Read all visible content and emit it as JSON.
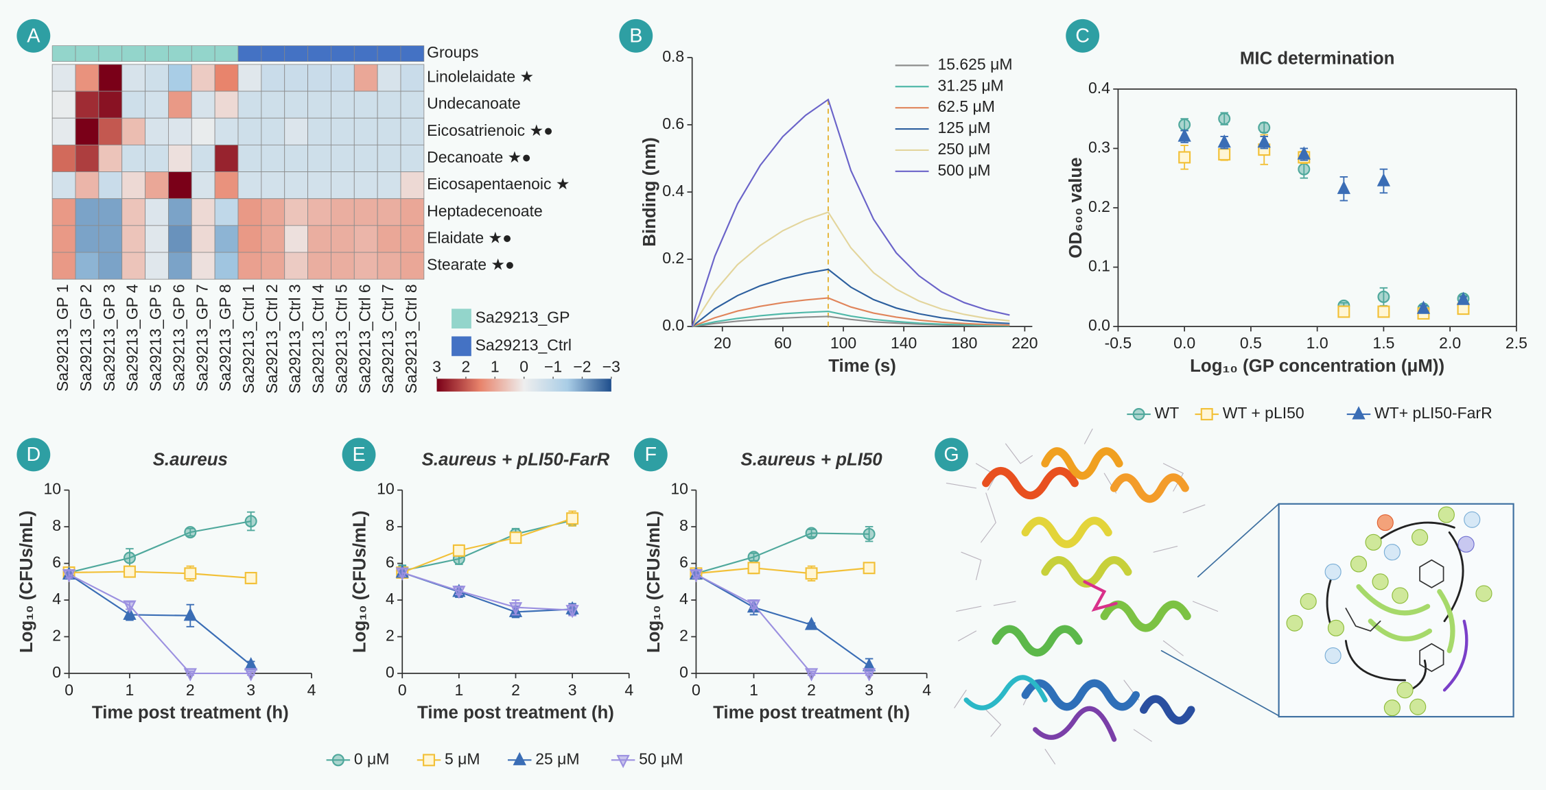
{
  "panel_labels": [
    "A",
    "B",
    "C",
    "D",
    "E",
    "F",
    "G"
  ],
  "chart_data": [
    {
      "type": "heatmap",
      "rows": [
        "Linolelaidate ★",
        "Undecanoate",
        "Eicosatrienoic ★●",
        "Decanoate ★●",
        "Eicosapentaenoic ★",
        "Heptadecenoate",
        "Elaidate ★●",
        "Stearate  ★●"
      ],
      "columns": [
        "Sa29213_GP 1",
        "Sa29213_GP 2",
        "Sa29213_GP 3",
        "Sa29213_GP 4",
        "Sa29213_GP 5",
        "Sa29213_GP 6",
        "Sa29213_GP 7",
        "Sa29213_GP 8",
        "Sa29213_Ctrl 1",
        "Sa29213_Ctrl 2",
        "Sa29213_Ctrl 3",
        "Sa29213_Ctrl 4",
        "Sa29213_Ctrl 5",
        "Sa29213_Ctrl 6",
        "Sa29213_Ctrl 7",
        "Sa29213_Ctrl 8"
      ],
      "values": [
        [
          -0.3,
          1.3,
          3,
          -0.5,
          -0.7,
          -1.5,
          0.5,
          1.5,
          -0.3,
          -0.8,
          -0.8,
          -0.8,
          -0.8,
          1.0,
          -0.5,
          -0.8
        ],
        [
          -0.1,
          2.5,
          2.8,
          -0.7,
          -0.6,
          1.2,
          -0.5,
          0.3,
          -0.7,
          -0.7,
          -0.7,
          -0.7,
          -0.7,
          -0.7,
          -0.7,
          -0.7
        ],
        [
          -0.2,
          3.2,
          2,
          0.7,
          -0.5,
          -0.4,
          -0.1,
          -0.6,
          -0.7,
          -0.7,
          -0.4,
          -0.7,
          -0.7,
          -0.7,
          -0.7,
          -0.7
        ],
        [
          1.8,
          2.3,
          0.6,
          -0.7,
          -0.7,
          0.2,
          -0.7,
          2.6,
          -0.7,
          -0.7,
          -0.7,
          -0.7,
          -0.7,
          -0.7,
          -0.7,
          -0.7
        ],
        [
          -0.6,
          0.8,
          -0.8,
          0.3,
          1.0,
          3.3,
          -0.5,
          1.3,
          -0.6,
          -0.6,
          -0.6,
          -0.6,
          -0.6,
          -0.6,
          -0.6,
          0.3
        ],
        [
          1.2,
          -2,
          -2,
          0.6,
          -0.4,
          -2,
          0.3,
          -1,
          1.2,
          1.0,
          0.6,
          0.8,
          0.9,
          0.9,
          0.9,
          1.0
        ],
        [
          1.2,
          -2,
          -2,
          0.6,
          -0.3,
          -2.2,
          0.3,
          -1.8,
          1.2,
          1.0,
          0.2,
          0.9,
          0.9,
          0.8,
          1.0,
          1.0
        ],
        [
          1.2,
          -1.8,
          -2,
          0.6,
          -0.3,
          -2,
          0.2,
          -1.6,
          1.1,
          1.0,
          0.5,
          0.9,
          0.9,
          0.8,
          0.9,
          1.0
        ]
      ],
      "group_label": "Groups",
      "column_groups": [
        "Sa29213_GP",
        "Sa29213_GP",
        "Sa29213_GP",
        "Sa29213_GP",
        "Sa29213_GP",
        "Sa29213_GP",
        "Sa29213_GP",
        "Sa29213_GP",
        "Sa29213_Ctrl",
        "Sa29213_Ctrl",
        "Sa29213_Ctrl",
        "Sa29213_Ctrl",
        "Sa29213_Ctrl",
        "Sa29213_Ctrl",
        "Sa29213_Ctrl",
        "Sa29213_Ctrl"
      ],
      "groups": [
        {
          "name": "Sa29213_GP",
          "color": "#93d5cb"
        },
        {
          "name": "Sa29213_Ctrl",
          "color": "#4472c4"
        }
      ],
      "clim": [
        -3,
        3
      ],
      "colorbar_ticks": [
        3,
        2,
        1,
        0,
        {
          "value": -1,
          "label": "−1"
        },
        {
          "value": -2,
          "label": "−2"
        },
        {
          "value": -3,
          "label": "−3"
        }
      ],
      "colormap": [
        "#7a0018",
        "#e8846c",
        "#eeeeee",
        "#a9cde6",
        "#1f4e8c"
      ]
    },
    {
      "type": "line",
      "xlabel": "Time (s)",
      "ylabel": "Binding (nm)",
      "x": [
        0,
        15,
        30,
        45,
        60,
        75,
        90,
        105,
        120,
        135,
        150,
        165,
        180,
        195,
        210
      ],
      "series": [
        {
          "name": "15.625 μM",
          "color": "#8c8c8c",
          "values": [
            0,
            0.009,
            0.016,
            0.021,
            0.025,
            0.028,
            0.03,
            0.021,
            0.014,
            0.01,
            0.007,
            0.005,
            0.003,
            0.002,
            0.002
          ]
        },
        {
          "name": "31.25 μM",
          "color": "#4fb8a8",
          "values": [
            0,
            0.014,
            0.024,
            0.032,
            0.038,
            0.042,
            0.045,
            0.031,
            0.021,
            0.015,
            0.01,
            0.007,
            0.005,
            0.003,
            0.002
          ]
        },
        {
          "name": "62.5 μM",
          "color": "#e0845a",
          "values": [
            0,
            0.026,
            0.046,
            0.06,
            0.071,
            0.079,
            0.085,
            0.058,
            0.04,
            0.028,
            0.019,
            0.013,
            0.009,
            0.006,
            0.004
          ]
        },
        {
          "name": "125 μM",
          "color": "#2c5f9e",
          "values": [
            0,
            0.053,
            0.092,
            0.121,
            0.142,
            0.158,
            0.17,
            0.117,
            0.08,
            0.055,
            0.038,
            0.026,
            0.018,
            0.012,
            0.009
          ]
        },
        {
          "name": "250 μM",
          "color": "#e3d59c",
          "values": [
            0,
            0.105,
            0.184,
            0.241,
            0.285,
            0.317,
            0.34,
            0.234,
            0.16,
            0.111,
            0.076,
            0.052,
            0.036,
            0.024,
            0.017
          ]
        },
        {
          "name": "500 μM",
          "color": "#6a63c9",
          "values": [
            0,
            0.209,
            0.365,
            0.479,
            0.565,
            0.628,
            0.675,
            0.464,
            0.319,
            0.219,
            0.151,
            0.103,
            0.071,
            0.049,
            0.034
          ]
        }
      ],
      "xlim": [
        0,
        225
      ],
      "ylim": [
        0,
        0.8
      ],
      "xticks": [
        20,
        60,
        100,
        140,
        180,
        220
      ],
      "yticks": [
        {
          "value": 0,
          "label": "0.0"
        },
        0.2,
        0.4,
        0.6,
        0.8
      ],
      "vline": 90,
      "vline_color": "#e6b73c",
      "legend": "upper right"
    },
    {
      "type": "scatter",
      "title": "MIC determination",
      "xlabel": "Log₁₀ (GP concentration (μM))",
      "ylabel": "OD₆₀₀ value",
      "x": [
        0,
        0.3,
        0.6,
        0.9,
        1.2,
        1.5,
        1.8,
        2.1
      ],
      "series": [
        {
          "name": "WT",
          "color": "#4fa89c",
          "marker": "circle",
          "values": [
            0.34,
            0.35,
            0.335,
            0.265,
            0.035,
            0.05,
            0.03,
            0.047
          ],
          "errors": [
            0.01,
            0.01,
            0.008,
            0.015,
            0.005,
            0.015,
            0.005,
            0.005
          ]
        },
        {
          "name": "WT + pLI50",
          "color": "#f2c037",
          "marker": "square",
          "values": [
            0.285,
            0.29,
            0.298,
            0.285,
            0.025,
            0.025,
            0.022,
            0.03
          ],
          "errors": [
            0.02,
            0.01,
            0.025,
            0.01,
            0.005,
            0.005,
            0.005,
            0.005
          ]
        },
        {
          "name": "WT+ pLI50-FarR",
          "color": "#3a6db5",
          "marker": "triangle",
          "values": [
            0.32,
            0.31,
            0.31,
            0.29,
            0.232,
            0.245,
            0.03,
            0.045
          ],
          "errors": [
            0.01,
            0.01,
            0.01,
            0.01,
            0.02,
            0.02,
            0.005,
            0.005
          ]
        }
      ],
      "xlim": [
        -0.5,
        2.5
      ],
      "ylim": [
        0,
        0.4
      ],
      "xticks": [
        {
          "value": -0.5,
          "label": "-0.5"
        },
        {
          "value": 0,
          "label": "0.0"
        },
        0.5,
        {
          "value": 1,
          "label": "1.0"
        },
        1.5,
        {
          "value": 2,
          "label": "2.0"
        },
        2.5
      ],
      "yticks": [
        {
          "value": 0,
          "label": "0.0"
        },
        0.1,
        0.2,
        0.3,
        0.4
      ]
    },
    {
      "type": "line",
      "title": "S.aureus",
      "xlabel": "Time post treatment (h)",
      "ylabel": "Log₁₀ (CFUs/mL)",
      "x": [
        0,
        1,
        2,
        3
      ],
      "series": [
        {
          "name": "0 μM",
          "color": "#4fa89c",
          "marker": "circle",
          "values": [
            5.5,
            6.3,
            7.7,
            8.3
          ],
          "errors": [
            0.3,
            0.5,
            0.2,
            0.5
          ]
        },
        {
          "name": "5 μM",
          "color": "#f2c037",
          "marker": "square",
          "values": [
            5.5,
            5.55,
            5.45,
            5.2
          ],
          "errors": [
            0.2,
            0.3,
            0.4,
            0.3
          ]
        },
        {
          "name": "25 μM",
          "color": "#3a6db5",
          "marker": "triangle",
          "values": [
            5.4,
            3.2,
            3.15,
            0.45
          ],
          "errors": [
            0.2,
            0.3,
            0.6,
            0.2
          ]
        },
        {
          "name": "50 μM",
          "color": "#9b90e0",
          "marker": "triangle-down",
          "values": [
            5.4,
            3.7,
            0,
            0
          ],
          "errors": [
            0.2,
            0.2,
            0.1,
            0.1
          ]
        }
      ],
      "xlim": [
        0,
        4
      ],
      "ylim": [
        0,
        10
      ],
      "xticks": [
        0,
        1,
        2,
        3,
        4
      ],
      "yticks": [
        0,
        2,
        4,
        6,
        8,
        10
      ]
    },
    {
      "type": "line",
      "title": "S.aureus + pLI50-FarR",
      "xlabel": "Time post treatment (h)",
      "ylabel": "Log₁₀ (CFUs/mL)",
      "x": [
        0,
        1,
        2,
        3
      ],
      "series": [
        {
          "name": "0 μM",
          "color": "#4fa89c",
          "marker": "circle",
          "values": [
            5.6,
            6.25,
            7.6,
            8.35
          ],
          "errors": [
            0.3,
            0.3,
            0.3,
            0.3
          ]
        },
        {
          "name": "5 μM",
          "color": "#f2c037",
          "marker": "square",
          "values": [
            5.5,
            6.7,
            7.4,
            8.45
          ],
          "errors": [
            0.2,
            0.3,
            0.2,
            0.4
          ]
        },
        {
          "name": "25 μM",
          "color": "#3a6db5",
          "marker": "triangle",
          "values": [
            5.5,
            4.45,
            3.35,
            3.5
          ],
          "errors": [
            0.2,
            0.3,
            0.3,
            0.3
          ]
        },
        {
          "name": "50 μM",
          "color": "#9b90e0",
          "marker": "triangle-down",
          "values": [
            5.5,
            4.5,
            3.6,
            3.45
          ],
          "errors": [
            0.2,
            0.2,
            0.4,
            0.3
          ]
        }
      ],
      "xlim": [
        0,
        4
      ],
      "ylim": [
        0,
        10
      ],
      "xticks": [
        0,
        1,
        2,
        3,
        4
      ],
      "yticks": [
        0,
        2,
        4,
        6,
        8,
        10
      ]
    },
    {
      "type": "line",
      "title": "S.aureus + pLI50",
      "xlabel": "Time post treatment (h)",
      "ylabel": "Log₁₀ (CFUs/mL)",
      "x": [
        0,
        1,
        2,
        3
      ],
      "series": [
        {
          "name": "0 μM",
          "color": "#4fa89c",
          "marker": "circle",
          "values": [
            5.45,
            6.35,
            7.65,
            7.6
          ],
          "errors": [
            0.2,
            0.2,
            0.2,
            0.4
          ]
        },
        {
          "name": "5 μM",
          "color": "#f2c037",
          "marker": "square",
          "values": [
            5.45,
            5.75,
            5.45,
            5.75
          ],
          "errors": [
            0.2,
            0.3,
            0.4,
            0.2
          ]
        },
        {
          "name": "25 μM",
          "color": "#3a6db5",
          "marker": "triangle",
          "values": [
            5.4,
            3.6,
            2.65,
            0.4
          ],
          "errors": [
            0.2,
            0.4,
            0.1,
            0.4
          ]
        },
        {
          "name": "50 μM",
          "color": "#9b90e0",
          "marker": "triangle-down",
          "values": [
            5.4,
            3.75,
            0,
            0
          ],
          "errors": [
            0.2,
            0.2,
            0.1,
            0.1
          ]
        }
      ],
      "xlim": [
        0,
        4
      ],
      "ylim": [
        0,
        10
      ],
      "xticks": [
        0,
        1,
        2,
        3,
        4
      ],
      "yticks": [
        0,
        2,
        4,
        6,
        8,
        10
      ]
    }
  ]
}
